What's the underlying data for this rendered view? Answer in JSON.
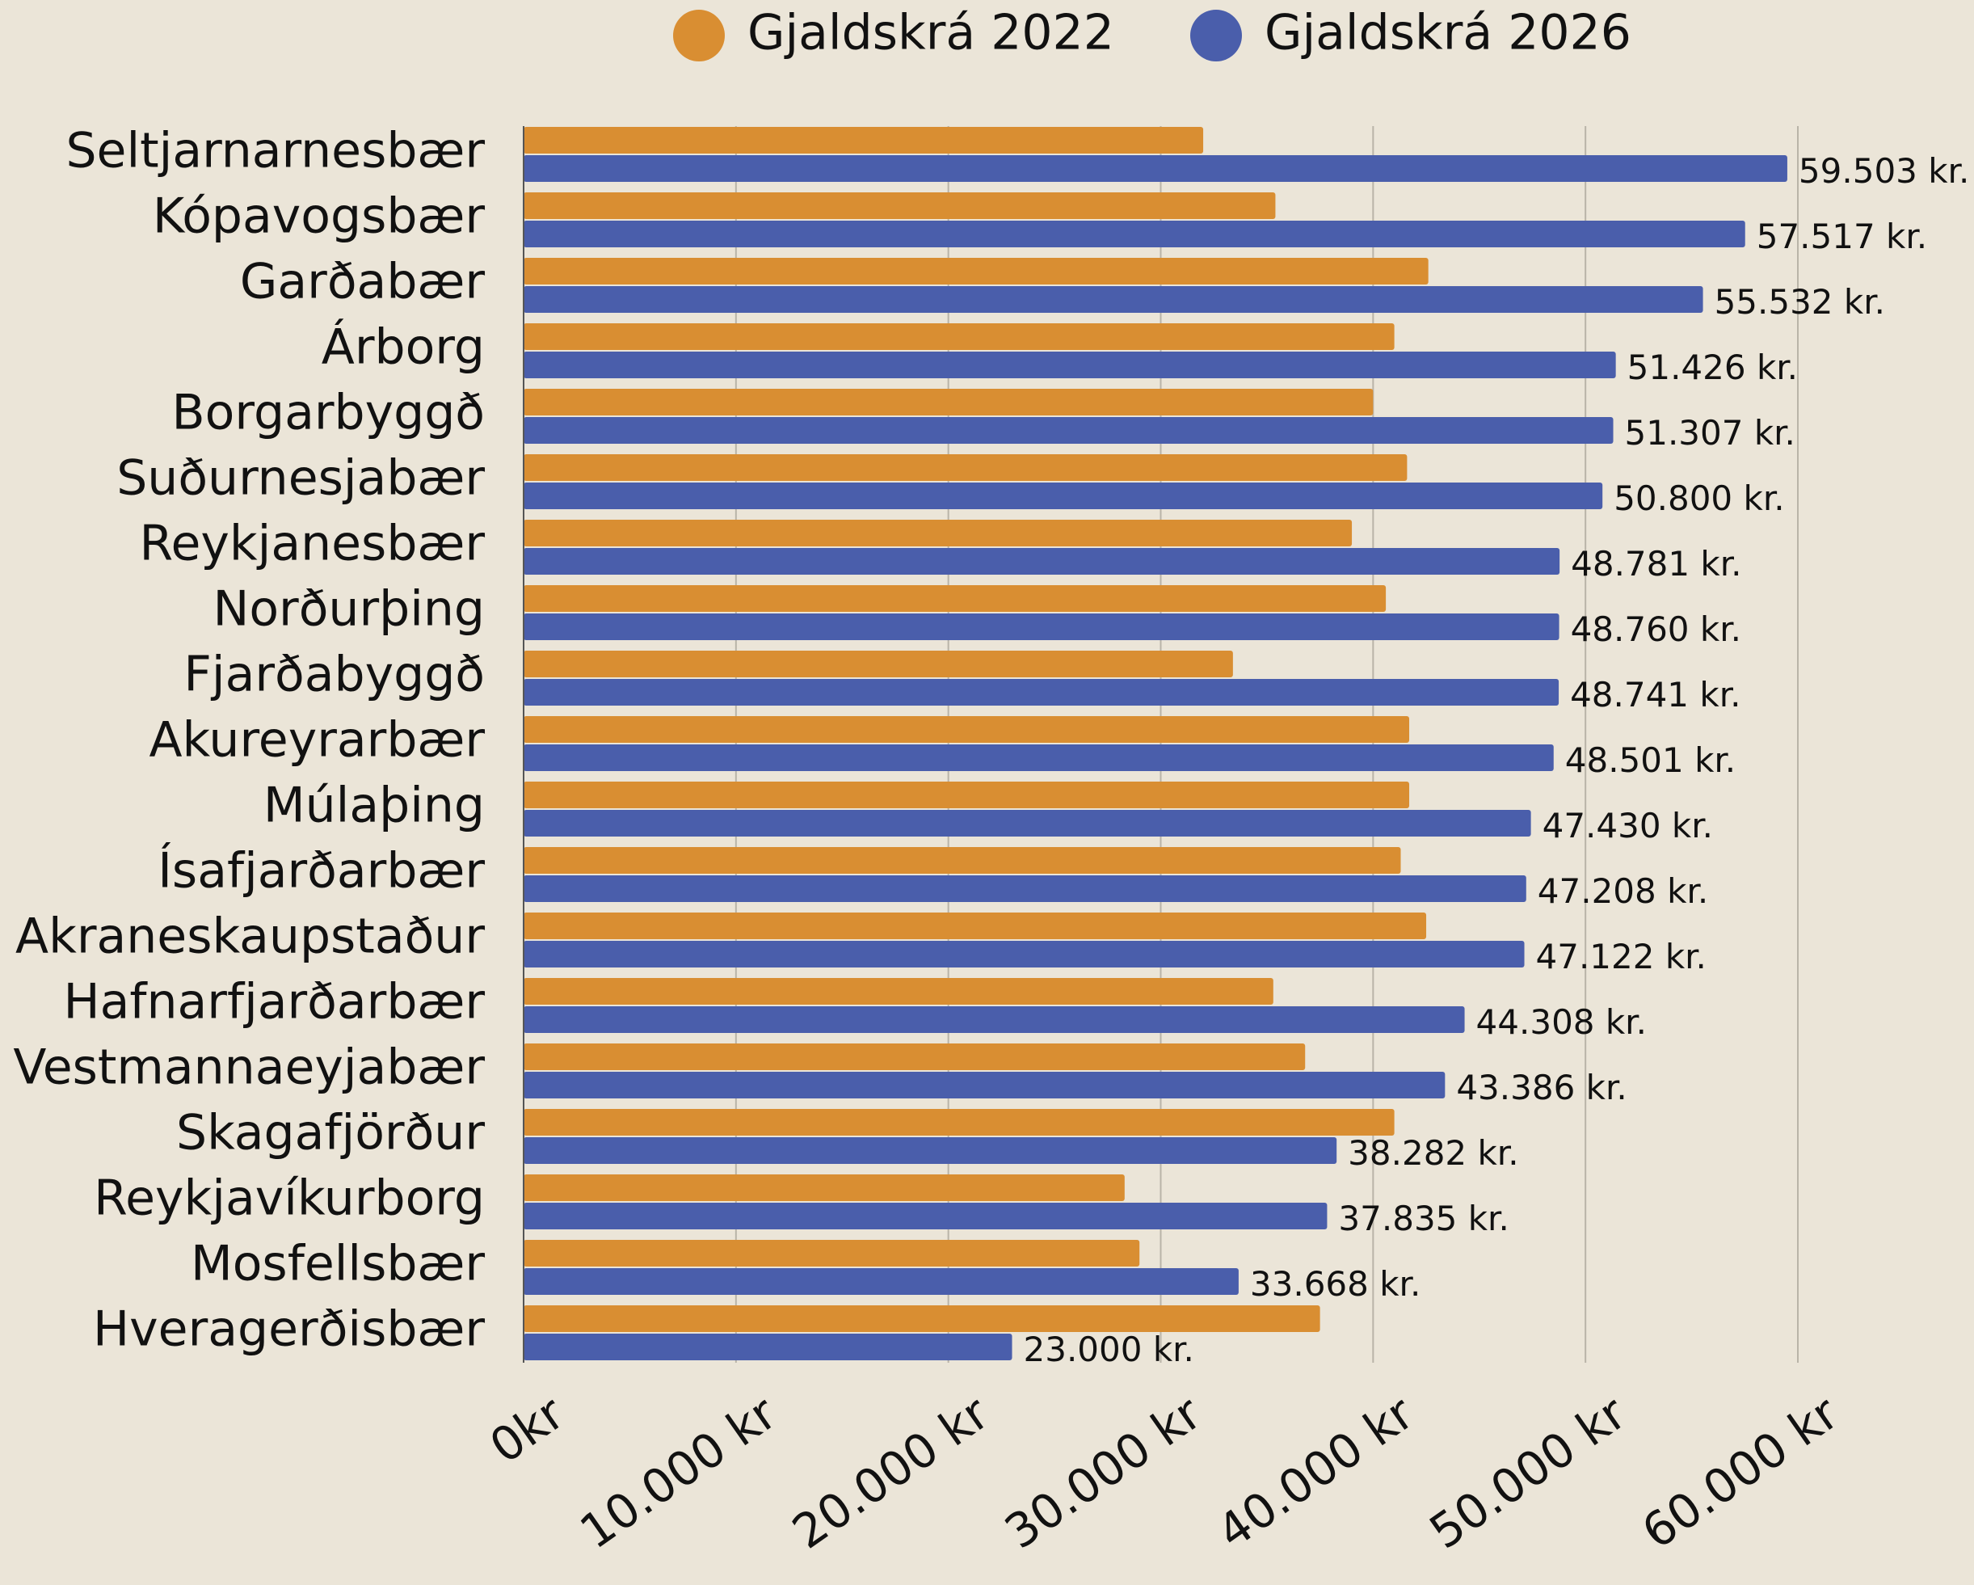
{
  "chart_data": {
    "type": "bar",
    "orientation": "horizontal",
    "categories": [
      "Seltjarnarnesbær",
      "Kópavogsbær",
      "Garðabær",
      "Árborg",
      "Borgarbyggð",
      "Suðurnesjabær",
      "Reykjanesbær",
      "Norðurþing",
      "Fjarðabyggð",
      "Akureyrarbær",
      "Múlaþing",
      "Ísafjarðarbær",
      "Akraneskaupstaður",
      "Hafnarfjarðarbær",
      "Vestmannaeyjabær",
      "Skagafjörður",
      "Reykjavíkurborg",
      "Mosfellsbær",
      "Hveragerðisbær"
    ],
    "series": [
      {
        "name": "Gjaldskrá 2022",
        "color": "#d98e32",
        "values": [
          32000,
          35400,
          42600,
          41000,
          40000,
          41600,
          39000,
          40600,
          33400,
          41700,
          41700,
          41300,
          42500,
          35300,
          36800,
          41000,
          28300,
          29000,
          37500
        ]
      },
      {
        "name": "Gjaldskrá 2026",
        "color": "#4a5eab",
        "values": [
          59503,
          57517,
          55532,
          51426,
          51307,
          50800,
          48781,
          48760,
          48741,
          48501,
          47430,
          47208,
          47122,
          44308,
          43386,
          38282,
          37835,
          33668,
          23000
        ],
        "value_labels": [
          "59.503 kr.",
          "57.517 kr.",
          "55.532 kr.",
          "51.426 kr.",
          "51.307 kr.",
          "50.800 kr.",
          "48.781 kr.",
          "48.760 kr.",
          "48.741 kr.",
          "48.501 kr.",
          "47.430 kr.",
          "47.208 kr.",
          "47.122 kr.",
          "44.308 kr.",
          "43.386 kr.",
          "38.282 kr.",
          "37.835 kr.",
          "33.668 kr.",
          "23.000 kr."
        ]
      }
    ],
    "xlim": [
      0,
      60000
    ],
    "xticks": [
      {
        "value": 0,
        "label": "0kr"
      },
      {
        "value": 10000,
        "label": "10.000 kr"
      },
      {
        "value": 20000,
        "label": "20.000 kr"
      },
      {
        "value": 30000,
        "label": "30.000 kr"
      },
      {
        "value": 40000,
        "label": "40.000 kr"
      },
      {
        "value": 50000,
        "label": "50.000 kr"
      },
      {
        "value": 60000,
        "label": "60.000 kr"
      }
    ],
    "grid": true,
    "legend": "top"
  }
}
